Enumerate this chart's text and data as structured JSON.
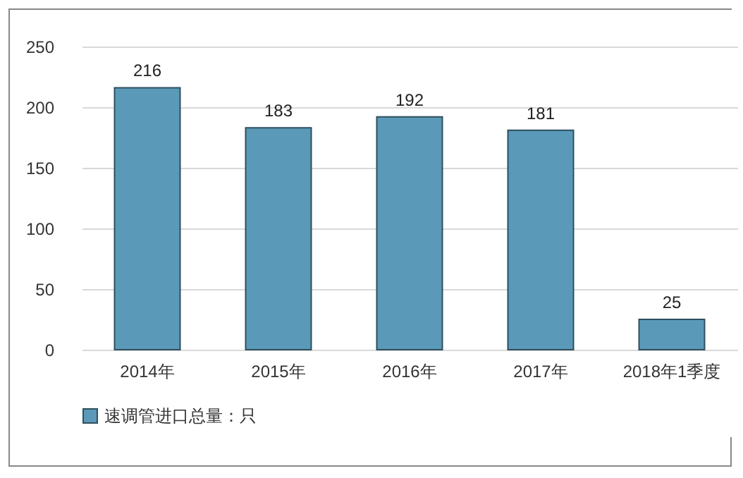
{
  "chart_data": {
    "type": "bar",
    "categories": [
      "2014年",
      "2015年",
      "2016年",
      "2017年",
      "2018年1季度"
    ],
    "series": [
      {
        "name": "速调管进口总量：只",
        "color": "#5a9ab8",
        "values": [
          216,
          183,
          192,
          181,
          25
        ]
      }
    ],
    "ylim": [
      0,
      250
    ],
    "yticks": [
      0,
      50,
      100,
      150,
      200,
      250
    ],
    "grid": "y",
    "legend": "bottom",
    "data_labels": true
  }
}
